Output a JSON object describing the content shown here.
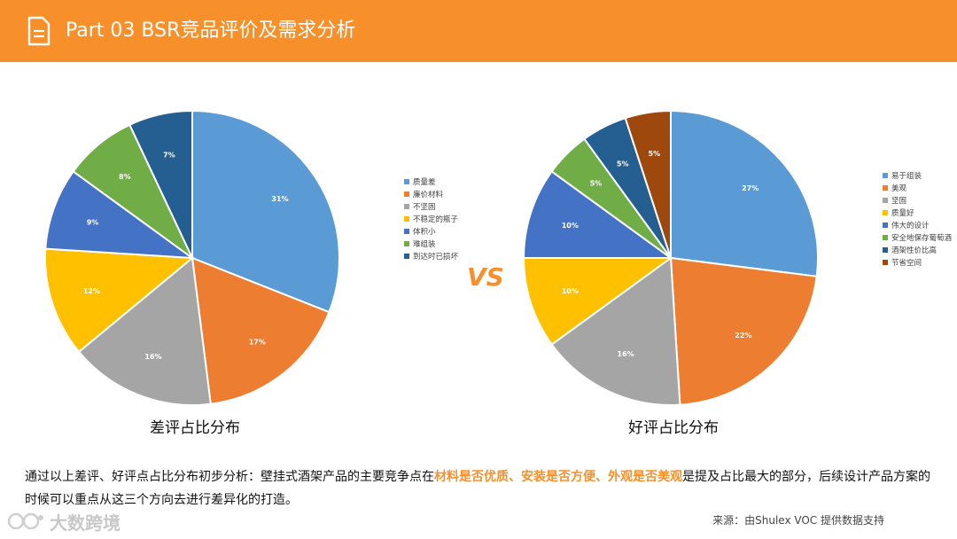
{
  "header": {
    "title": "Part 03   BSR竞品评价及需求分析"
  },
  "vs_label": "VS",
  "chart_data": [
    {
      "type": "pie",
      "title": "差评占比分布",
      "categories": [
        "质量差",
        "廉价材料",
        "不坚固",
        "不稳定的瓶子",
        "体积小",
        "难组装",
        "到达时已损坏"
      ],
      "values": [
        31,
        17,
        16,
        12,
        9,
        8,
        7
      ],
      "labels": [
        "31%",
        "17%",
        "16%",
        "12%",
        "9%",
        "8%",
        "7%"
      ],
      "colors": [
        "#5b9bd5",
        "#ed7d31",
        "#a5a5a5",
        "#ffc000",
        "#4472c4",
        "#70ad47",
        "#255e91"
      ],
      "legend_position": "right"
    },
    {
      "type": "pie",
      "title": "好评占比分布",
      "categories": [
        "易于组装",
        "美观",
        "坚固",
        "质量好",
        "伟大的设计",
        "安全地保存葡萄酒",
        "酒架性价比高",
        "节省空间"
      ],
      "values": [
        27,
        22,
        16,
        10,
        10,
        5,
        5,
        5
      ],
      "labels": [
        "27%",
        "22%",
        "16%",
        "10%",
        "10%",
        "5%",
        "5%",
        "5%"
      ],
      "colors": [
        "#5b9bd5",
        "#ed7d31",
        "#a5a5a5",
        "#ffc000",
        "#4472c4",
        "#70ad47",
        "#255e91",
        "#9e480e"
      ],
      "legend_position": "right"
    }
  ],
  "summary": {
    "part1": "通过以上差评、好评点占比分布初步分析：壁挂式酒架产品的主要竞争点在",
    "highlight": "材料是否优质、安装是否方便、外观是否美观",
    "part2": "是提及占比最大的部分，后续设计产品方案的时候可以重点从这三个方向去进行差异化的打造。"
  },
  "watermark": "大数跨境",
  "source": "来源：由Shulex VOC 提供数据支持"
}
